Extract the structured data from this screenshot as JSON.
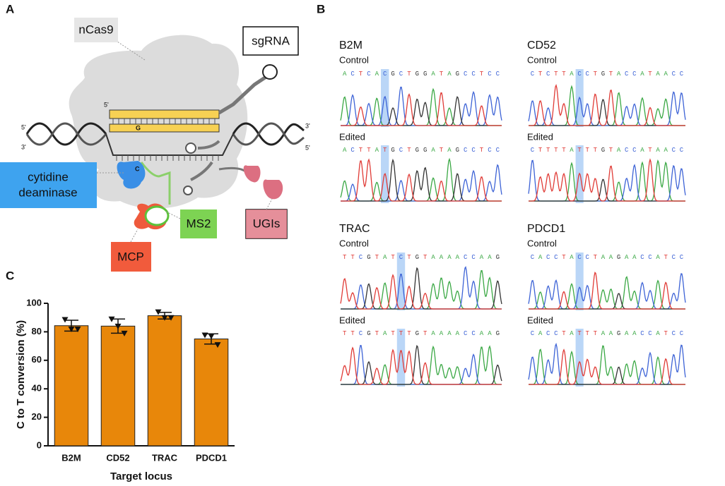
{
  "panel_a": {
    "label": "A",
    "ncas9": "nCas9",
    "sgrna": "sgRNA",
    "strand_ends": [
      "5'",
      "3'",
      "3'",
      "5'",
      "5'"
    ],
    "target_base": "G",
    "edited_base": "C",
    "deaminase": [
      "cytidine",
      "deaminase"
    ],
    "ms2": "MS2",
    "mcp": "MCP",
    "ugis": "UGIs"
  },
  "panel_b": {
    "label": "B",
    "genes": [
      {
        "name": "B2M",
        "control_label": "Control",
        "control": "ACTCACGCTGGATAGCCTCC",
        "edited_label": "Edited",
        "edited": "ACTTATGCTGGATAGCCTCC"
      },
      {
        "name": "CD52",
        "control_label": "Control",
        "control": "CTCTTACCTGTACCATAACC",
        "edited_label": "Edited",
        "edited": "CTTTTATTTGTACCATAACC"
      },
      {
        "name": "TRAC",
        "control_label": "Control",
        "control": "TTCGTATCTGTAAAACCAAG",
        "edited_label": "Edited",
        "edited": "TTCGTATTTGTAAAACCAAG"
      },
      {
        "name": "PDCD1",
        "control_label": "Control",
        "control": "CACCTACCTAAGAACCATCC",
        "edited_label": "Edited",
        "edited": "CACCTATTTAAGAACCATCC"
      }
    ]
  },
  "chart_data": {
    "type": "bar",
    "panel_label": "C",
    "categories": [
      "B2M",
      "CD52",
      "TRAC",
      "PDCD1"
    ],
    "values": [
      84.3,
      84,
      91.3,
      75
    ],
    "errors": [
      3.8,
      5,
      2.3,
      3.6
    ],
    "points": [
      [
        88.6,
        82,
        82
      ],
      [
        89,
        84,
        79
      ],
      [
        94,
        90,
        90
      ],
      [
        77.7,
        77,
        71
      ]
    ],
    "color": "#e8870a",
    "xlabel": "Target locus",
    "ylabel": "C to T conversion (%)",
    "ylim": [
      0,
      100
    ],
    "yticks": [
      0,
      20,
      40,
      60,
      80,
      100
    ]
  }
}
